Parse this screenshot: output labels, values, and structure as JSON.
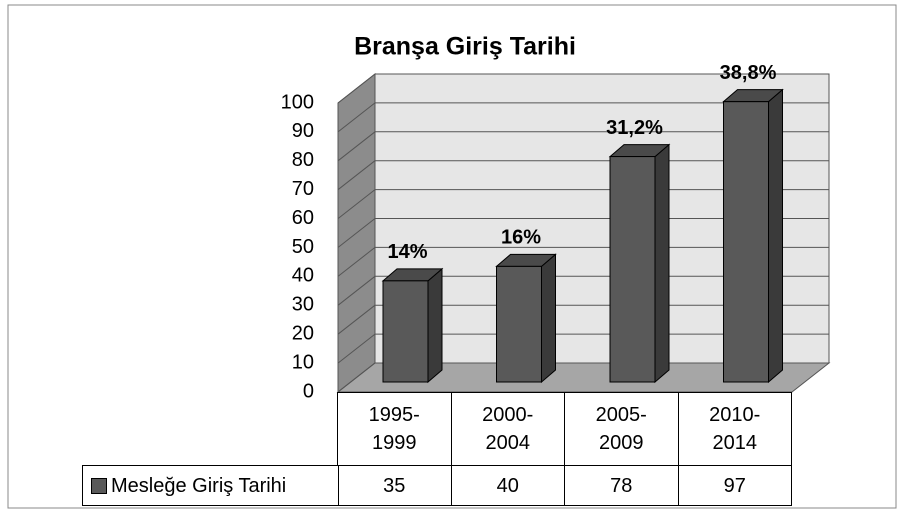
{
  "chart_data": {
    "type": "bar3d",
    "title": "Branşa Giriş Tarihi",
    "categories": [
      "1995-\n1999",
      "2000-\n2004",
      "2005-\n2009",
      "2010-\n2014"
    ],
    "series": [
      {
        "name": "Mesleğe Giriş Tarihi",
        "color": "#595959",
        "values": [
          35,
          40,
          78,
          97
        ],
        "annotations": [
          "14%",
          "16%",
          "31,2%",
          "38,8%"
        ]
      }
    ],
    "ylim": [
      0,
      100
    ],
    "yticks": [
      0,
      10,
      20,
      30,
      40,
      50,
      60,
      70,
      80,
      90,
      100
    ],
    "grid": true
  }
}
